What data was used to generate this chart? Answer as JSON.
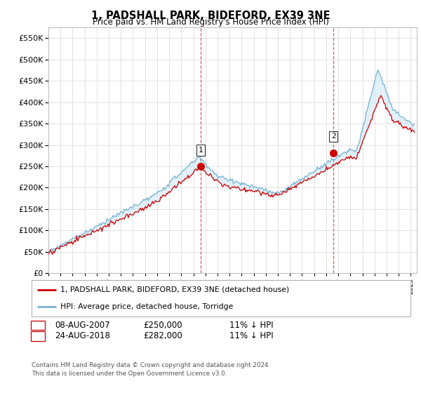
{
  "title": "1, PADSHALL PARK, BIDEFORD, EX39 3NE",
  "subtitle": "Price paid vs. HM Land Registry's House Price Index (HPI)",
  "hpi_color": "#7ab3d4",
  "hpi_fill_color": "#d0e8f5",
  "price_color": "#cc0000",
  "background_color": "#ffffff",
  "grid_color": "#dddddd",
  "ylim": [
    0,
    575000
  ],
  "yticks": [
    0,
    50000,
    100000,
    150000,
    200000,
    250000,
    300000,
    350000,
    400000,
    450000,
    500000,
    550000
  ],
  "legend_label_red": "1, PADSHALL PARK, BIDEFORD, EX39 3NE (detached house)",
  "legend_label_blue": "HPI: Average price, detached house, Torridge",
  "transaction1_date": "08-AUG-2007",
  "transaction1_price": "£250,000",
  "transaction1_hpi": "11% ↓ HPI",
  "transaction2_date": "24-AUG-2018",
  "transaction2_price": "£282,000",
  "transaction2_hpi": "11% ↓ HPI",
  "footnote": "Contains HM Land Registry data © Crown copyright and database right 2024.\nThis data is licensed under the Open Government Licence v3.0.",
  "vline1_x": 2007.6,
  "vline2_x": 2018.6,
  "transaction1_y": 250000,
  "transaction2_y": 282000,
  "xmin": 1995.0,
  "xmax": 2025.5
}
